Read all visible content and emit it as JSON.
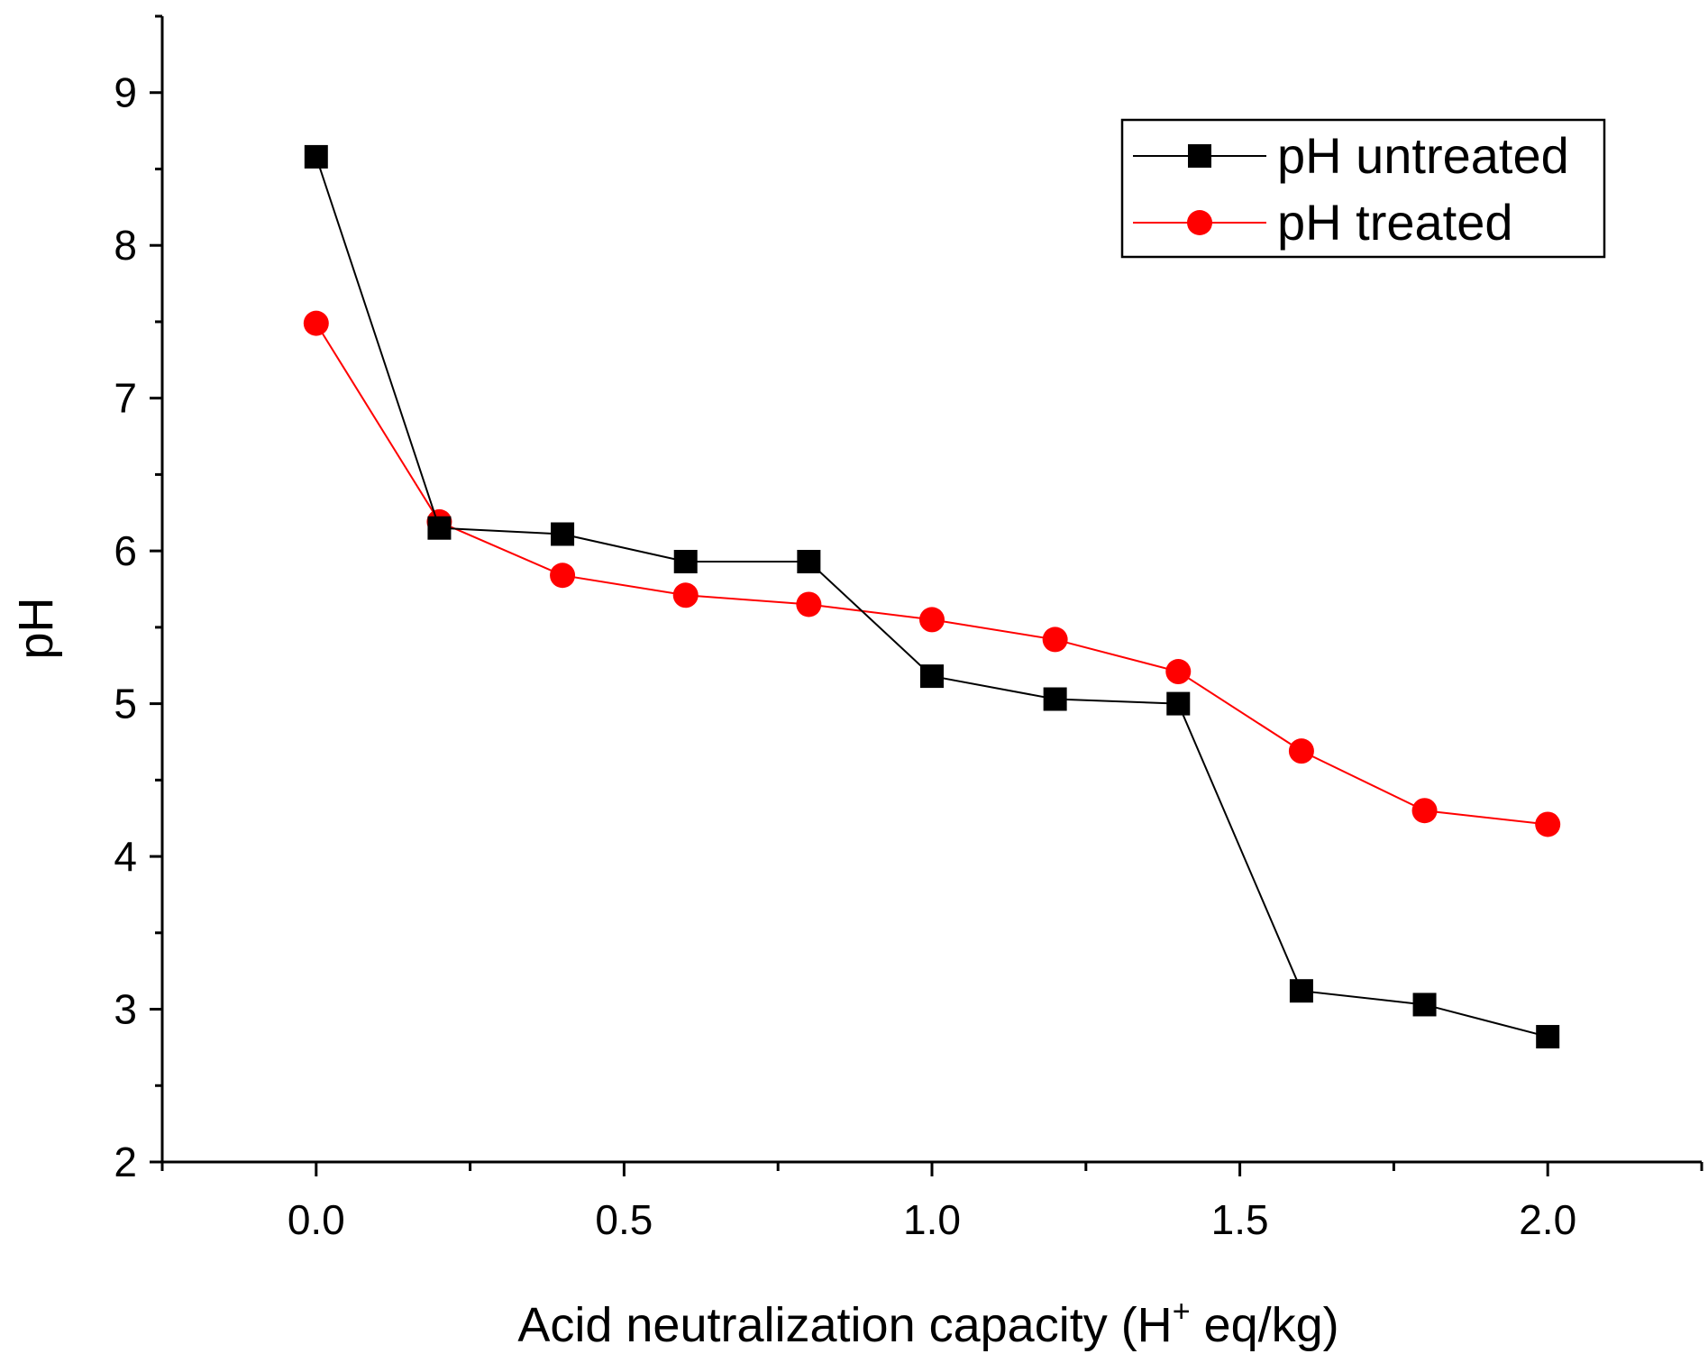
{
  "chart_data": {
    "type": "line",
    "title": "",
    "xlabel": "Acid neutralization capacity (H",
    "xlabel_sup": "+",
    "xlabel_tail": " eq/kg)",
    "ylabel": "pH",
    "xlim": [
      -0.25,
      2.25
    ],
    "ylim": [
      2,
      9.5
    ],
    "x_ticks": [
      0.0,
      0.5,
      1.0,
      1.5,
      2.0
    ],
    "x_tick_labels": [
      "0.0",
      "0.5",
      "1.0",
      "1.5",
      "2.0"
    ],
    "x_minor_ticks": [
      -0.25,
      0.25,
      0.75,
      1.25,
      1.75,
      2.25
    ],
    "y_ticks": [
      2,
      3,
      4,
      5,
      6,
      7,
      8,
      9
    ],
    "y_tick_labels": [
      "2",
      "3",
      "4",
      "5",
      "6",
      "7",
      "8",
      "9"
    ],
    "grid": false,
    "legend_position": "top-right",
    "x": [
      0.0,
      0.2,
      0.4,
      0.6,
      0.8,
      1.0,
      1.2,
      1.4,
      1.6,
      1.8,
      2.0
    ],
    "series": [
      {
        "name": "pH untreated",
        "color": "#000000",
        "marker": "square",
        "values": [
          8.58,
          6.15,
          6.11,
          5.93,
          5.93,
          5.18,
          5.03,
          5.0,
          3.12,
          3.03,
          2.82
        ]
      },
      {
        "name": "pH treated",
        "color": "#ff0000",
        "marker": "circle",
        "values": [
          7.49,
          6.19,
          5.84,
          5.71,
          5.65,
          5.55,
          5.42,
          5.21,
          4.69,
          4.3,
          4.21
        ]
      }
    ]
  }
}
